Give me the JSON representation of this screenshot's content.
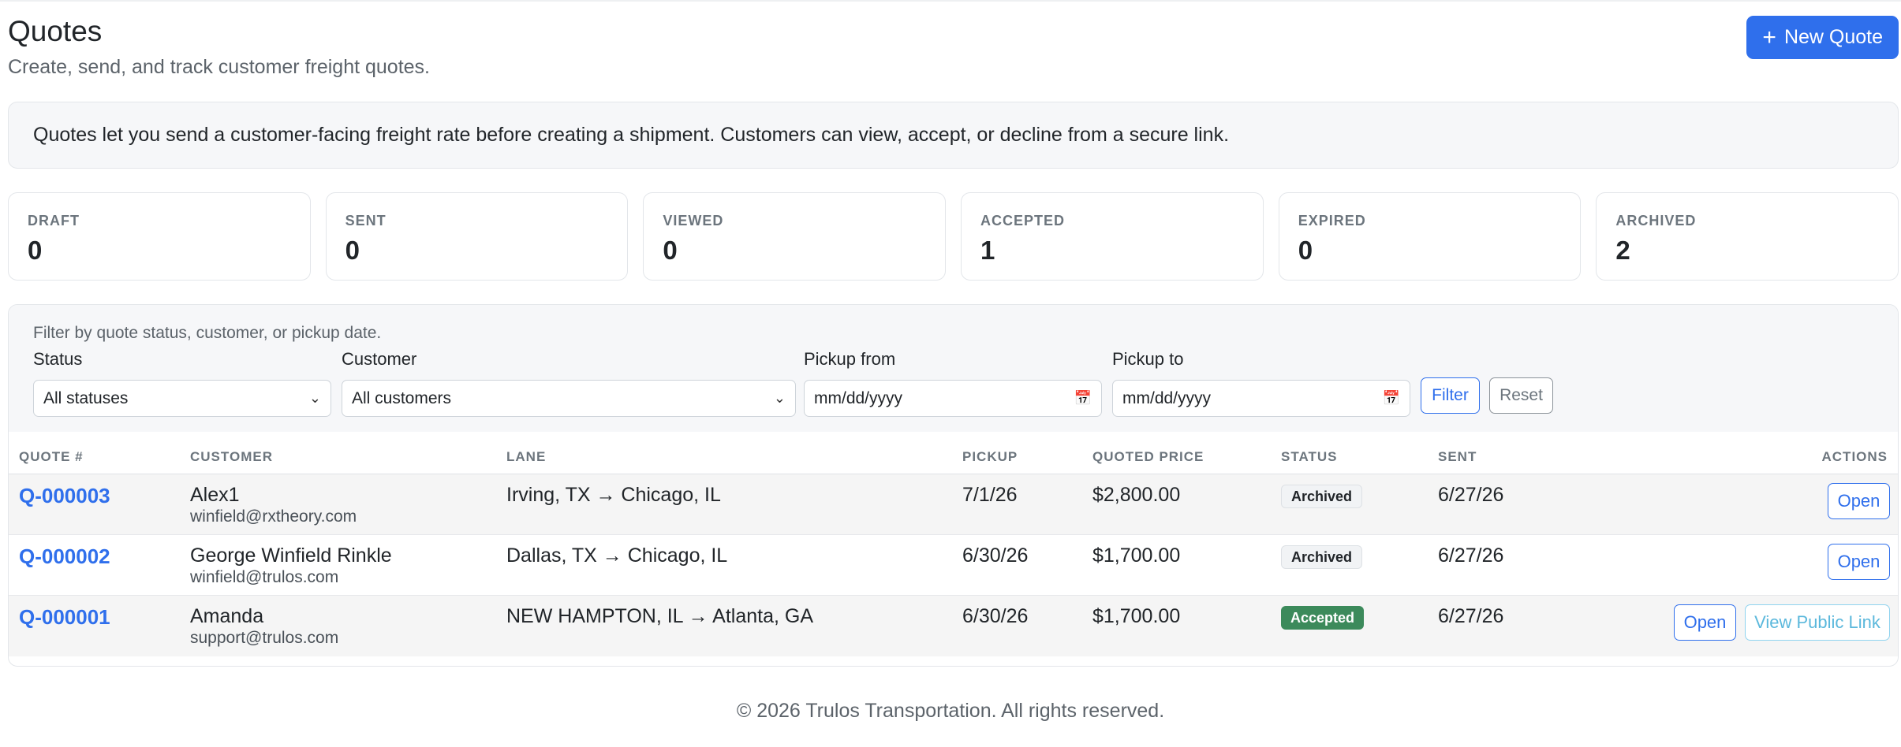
{
  "header": {
    "title": "Quotes",
    "subtitle": "Create, send, and track customer freight quotes.",
    "new_quote_label": "New Quote",
    "new_quote_icon": "plus-icon"
  },
  "info_text": "Quotes let you send a customer-facing freight rate before creating a shipment. Customers can view, accept, or decline from a secure link.",
  "stats": [
    {
      "label": "DRAFT",
      "value": "0"
    },
    {
      "label": "SENT",
      "value": "0"
    },
    {
      "label": "VIEWED",
      "value": "0"
    },
    {
      "label": "ACCEPTED",
      "value": "1"
    },
    {
      "label": "EXPIRED",
      "value": "0"
    },
    {
      "label": "ARCHIVED",
      "value": "2"
    }
  ],
  "filters": {
    "note": "Filter by quote status, customer, or pickup date.",
    "status_label": "Status",
    "status_value": "All statuses",
    "customer_label": "Customer",
    "customer_value": "All customers",
    "pickup_from_label": "Pickup from",
    "pickup_from_value": "mm/dd/yyyy",
    "pickup_to_label": "Pickup to",
    "pickup_to_value": "mm/dd/yyyy",
    "filter_label": "Filter",
    "reset_label": "Reset"
  },
  "table": {
    "columns": [
      "QUOTE #",
      "CUSTOMER",
      "LANE",
      "PICKUP",
      "QUOTED PRICE",
      "STATUS",
      "SENT",
      "ACTIONS"
    ],
    "rows": [
      {
        "quote": "Q-000003",
        "customer": "Alex1",
        "email": "winfield@rxtheory.com",
        "lane": "Irving, TX → Chicago, IL",
        "pickup": "7/1/26",
        "price": "$2,800.00",
        "status": "Archived",
        "sent": "6/27/26",
        "open": "Open"
      },
      {
        "quote": "Q-000002",
        "customer": "George Winfield Rinkle",
        "email": "winfield@trulos.com",
        "lane": "Dallas, TX → Chicago, IL",
        "pickup": "6/30/26",
        "price": "$1,700.00",
        "status": "Archived",
        "sent": "6/27/26",
        "open": "Open"
      },
      {
        "quote": "Q-000001",
        "customer": "Amanda",
        "email": "support@trulos.com",
        "lane": "NEW HAMPTON, IL → Atlanta, GA",
        "pickup": "6/30/26",
        "price": "$1,700.00",
        "status": "Accepted",
        "sent": "6/27/26",
        "open": "Open",
        "public_link": "View Public Link"
      }
    ]
  },
  "footer": "© 2026 Trulos Transportation. All rights reserved."
}
